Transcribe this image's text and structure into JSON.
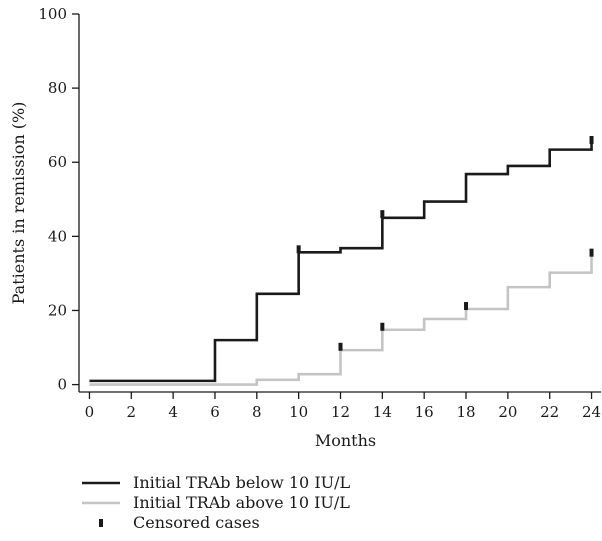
{
  "chart_data": {
    "type": "line",
    "step": true,
    "xlabel": "Months",
    "ylabel": "Patients in remission (%)",
    "xlim": [
      -0.5,
      24.5
    ],
    "ylim": [
      -2,
      100
    ],
    "xticks": [
      0,
      2,
      4,
      6,
      8,
      10,
      12,
      14,
      16,
      18,
      20,
      22,
      24
    ],
    "yticks": [
      0,
      20,
      40,
      60,
      80,
      100
    ],
    "grid": false,
    "legend_position": "bottom-left",
    "series": [
      {
        "name": "Initial TRAb below 10 IU/L",
        "color": "#1a1a1a",
        "x": [
          0,
          6,
          8,
          10,
          12,
          14,
          16,
          18,
          20,
          22,
          24
        ],
        "y": [
          1,
          12,
          24.5,
          35.7,
          36.8,
          45,
          49.4,
          56.8,
          59,
          63.4,
          66
        ]
      },
      {
        "name": "Initial TRAb above 10 IU/L",
        "color": "#c4c4c4",
        "x": [
          0,
          8,
          10,
          12,
          14,
          16,
          18,
          20,
          22,
          24
        ],
        "y": [
          0,
          1.3,
          2.8,
          9.3,
          14.8,
          17.7,
          20.4,
          26.3,
          30.2,
          35.5
        ]
      }
    ],
    "censored": {
      "label": "Censored cases",
      "color": "#1a1a1a",
      "points": [
        {
          "series": 0,
          "x": 10,
          "y": 36.5
        },
        {
          "series": 0,
          "x": 14,
          "y": 46
        },
        {
          "series": 0,
          "x": 24,
          "y": 66
        },
        {
          "series": 1,
          "x": 12,
          "y": 10.2
        },
        {
          "series": 1,
          "x": 14,
          "y": 15.6
        },
        {
          "series": 1,
          "x": 18,
          "y": 21.2
        },
        {
          "series": 1,
          "x": 24,
          "y": 35.6
        }
      ]
    }
  }
}
